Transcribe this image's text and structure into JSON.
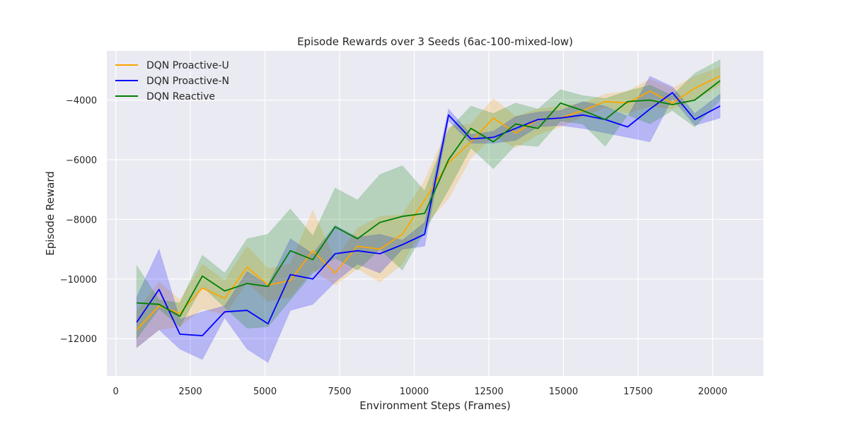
{
  "chart_data": {
    "type": "line",
    "title": "Episode Rewards over 3 Seeds (6ac-100-mixed-low)",
    "xlabel": "Environment Steps (Frames)",
    "ylabel": "Episode Reward",
    "xlim": [
      -300,
      21700
    ],
    "ylim": [
      -13250,
      -2350
    ],
    "xticks": [
      0,
      2500,
      5000,
      7500,
      10000,
      12500,
      15000,
      17500,
      20000
    ],
    "yticks": [
      -12000,
      -10000,
      -8000,
      -6000,
      -4000
    ],
    "grid": true,
    "legend_position": "upper-left",
    "background": "#eaeaf2",
    "x": [
      700,
      1450,
      2150,
      2900,
      3650,
      4400,
      5100,
      5850,
      6600,
      7350,
      8100,
      8850,
      9600,
      10350,
      11150,
      11900,
      12650,
      13400,
      14150,
      14900,
      15650,
      16400,
      17150,
      17900,
      18650,
      19400,
      20250
    ],
    "series": [
      {
        "name": "DQN Proactive-U",
        "color": "#ffa500",
        "mean": [
          -11700,
          -10900,
          -11150,
          -10300,
          -10650,
          -9600,
          -10200,
          -10050,
          -9050,
          -9800,
          -8900,
          -9000,
          -8500,
          -7350,
          -6100,
          -5400,
          -4600,
          -5100,
          -4650,
          -4600,
          -4350,
          -4050,
          -4100,
          -3700,
          -4100,
          -3600,
          -3200
        ],
        "lower": [
          -12300,
          -11700,
          -11600,
          -11000,
          -11200,
          -10100,
          -10750,
          -10600,
          -9700,
          -10200,
          -9650,
          -10100,
          -9500,
          -8200,
          -7300,
          -5950,
          -5200,
          -5600,
          -5150,
          -4900,
          -4550,
          -4250,
          -4450,
          -4200,
          -4300,
          -4000,
          -3500
        ],
        "upper": [
          -11100,
          -10100,
          -10700,
          -9500,
          -10050,
          -8900,
          -9650,
          -9500,
          -7700,
          -9350,
          -8300,
          -7900,
          -7850,
          -6700,
          -4900,
          -4800,
          -3950,
          -4550,
          -4300,
          -4200,
          -4100,
          -3800,
          -3700,
          -3300,
          -3600,
          -3200,
          -2900
        ]
      },
      {
        "name": "DQN Proactive-N",
        "color": "#0000ff",
        "mean": [
          -11450,
          -10350,
          -11850,
          -11900,
          -11100,
          -11050,
          -11500,
          -9850,
          -10000,
          -9150,
          -9050,
          -9150,
          -8850,
          -8500,
          -4500,
          -5300,
          -5250,
          -4950,
          -4650,
          -4600,
          -4500,
          -4650,
          -4900,
          -4300,
          -3750,
          -4650,
          -4200
        ],
        "lower": [
          -12300,
          -11700,
          -12350,
          -12700,
          -11300,
          -12350,
          -12800,
          -11050,
          -10850,
          -10100,
          -9500,
          -9800,
          -9000,
          -8900,
          -4700,
          -5450,
          -5450,
          -5350,
          -4900,
          -4850,
          -4950,
          -5100,
          -5250,
          -5400,
          -3950,
          -4850,
          -4600
        ],
        "upper": [
          -10600,
          -9000,
          -11350,
          -11100,
          -10900,
          -9750,
          -10200,
          -8650,
          -9150,
          -8200,
          -8600,
          -8500,
          -8700,
          -8100,
          -4300,
          -5150,
          -5050,
          -4550,
          -4400,
          -4350,
          -4050,
          -4200,
          -4550,
          -3200,
          -3550,
          -4450,
          -3800
        ]
      },
      {
        "name": "DQN Reactive",
        "color": "#008000",
        "mean": [
          -10800,
          -10850,
          -11250,
          -9900,
          -10400,
          -10150,
          -10250,
          -9050,
          -9350,
          -8250,
          -8650,
          -8100,
          -7900,
          -7800,
          -6000,
          -4950,
          -5400,
          -4800,
          -4950,
          -4100,
          -4350,
          -4650,
          -4050,
          -4000,
          -4150,
          -4000,
          -3350
        ],
        "lower": [
          -12000,
          -11000,
          -11600,
          -10250,
          -10950,
          -11650,
          -11600,
          -10700,
          -9800,
          -9300,
          -9700,
          -9000,
          -9700,
          -8400,
          -7000,
          -5600,
          -6300,
          -5500,
          -5550,
          -4700,
          -4800,
          -5550,
          -4500,
          -4800,
          -4350,
          -4900,
          -4000
        ],
        "upper": [
          -9550,
          -10700,
          -10800,
          -9200,
          -9800,
          -8650,
          -8500,
          -7650,
          -8550,
          -6950,
          -7350,
          -6500,
          -6200,
          -7050,
          -5000,
          -4200,
          -4450,
          -4100,
          -4300,
          -3650,
          -3850,
          -3950,
          -3700,
          -3500,
          -3850,
          -3100,
          -2650
        ]
      }
    ]
  }
}
